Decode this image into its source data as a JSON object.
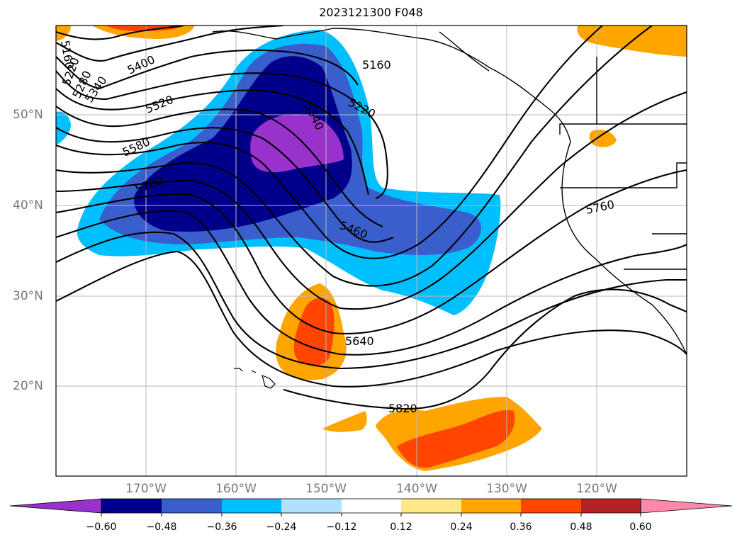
{
  "title": "2023121300 F048",
  "lat_labels": [
    "50°N",
    "40°N",
    "30°N",
    "20°N"
  ],
  "lon_labels": [
    "170°W",
    "160°W",
    "150°W",
    "140°W",
    "130°W",
    "120°W"
  ],
  "contour_labels": [
    "5160",
    "5220",
    "5280",
    "5340",
    "5400",
    "5520",
    "5580",
    "5700",
    "5160",
    "5220",
    "5340",
    "5460",
    "5640",
    "5820",
    "5760"
  ],
  "colorbar": {
    "ticks": [
      "−0.60",
      "−0.48",
      "−0.36",
      "−0.24",
      "−0.12",
      "0.12",
      "0.24",
      "0.36",
      "0.48",
      "0.60"
    ],
    "colors": [
      "#9932cc",
      "#00008b",
      "#3a5fcd",
      "#00bfff",
      "#b0e2ff",
      "#ffffff",
      "#ffe78a",
      "#ffa500",
      "#ff4500",
      "#b22222",
      "#ff88aa"
    ]
  }
}
